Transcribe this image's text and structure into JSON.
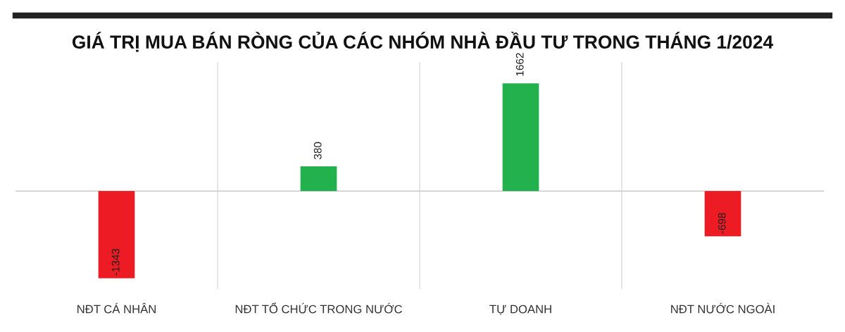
{
  "chart_data": {
    "type": "bar",
    "title": "GIÁ TRỊ MUA BÁN RÒNG CỦA CÁC NHÓM NHÀ ĐẦU TƯ TRONG THÁNG 1/2024",
    "categories": [
      "NĐT CÁ NHÂN",
      "NĐT TỔ CHỨC TRONG NƯỚC",
      "TỰ DOANH",
      "NĐT NƯỚC NGOÀI"
    ],
    "values": [
      -1343,
      380,
      1662,
      -698
    ],
    "colors": [
      "#ed1c24",
      "#22b14c",
      "#22b14c",
      "#ed1c24"
    ],
    "ylim": [
      -1510,
      1990
    ],
    "tick_labels": "x",
    "data_labels": true,
    "grid": "x"
  }
}
